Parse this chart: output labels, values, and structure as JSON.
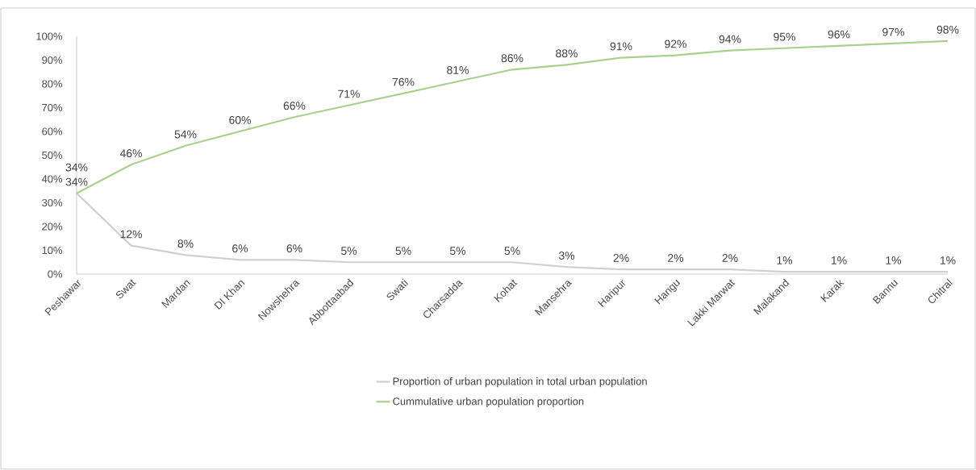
{
  "chart_data": {
    "type": "line",
    "categories": [
      "Peshawar",
      "Swat",
      "Mardan",
      "DI Khan",
      "Nowshehra",
      "Abbottaabad",
      "Swati",
      "Charsadda",
      "Kohat",
      "Mansehra",
      "Haripur",
      "Hangu",
      "Lakki Marwat",
      "Malakand",
      "Karak",
      "Bannu",
      "Chitral"
    ],
    "series": [
      {
        "name": "Proportion of urban population in total urban population",
        "color": "#d0d0d0",
        "values": [
          34,
          12,
          8,
          6,
          6,
          5,
          5,
          5,
          5,
          3,
          2,
          2,
          2,
          1,
          1,
          1,
          1
        ],
        "value_labels": [
          "34%",
          "12%",
          "8%",
          "6%",
          "6%",
          "5%",
          "5%",
          "5%",
          "5%",
          "3%",
          "2%",
          "2%",
          "2%",
          "1%",
          "1%",
          "1%",
          "1%"
        ]
      },
      {
        "name": "Cummulative urban population proportion",
        "color": "#a9d18e",
        "values": [
          34,
          46,
          54,
          60,
          66,
          71,
          76,
          81,
          86,
          88,
          91,
          92,
          94,
          95,
          96,
          97,
          98
        ],
        "value_labels": [
          "34%",
          "46%",
          "54%",
          "60%",
          "66%",
          "71%",
          "76%",
          "81%",
          "86%",
          "88%",
          "91%",
          "92%",
          "94%",
          "95%",
          "96%",
          "97%",
          "98%"
        ]
      }
    ],
    "ylim": [
      0,
      100
    ],
    "yticks": [
      {
        "value": 0,
        "label": "0%"
      },
      {
        "value": 10,
        "label": "10%"
      },
      {
        "value": 20,
        "label": "20%"
      },
      {
        "value": 30,
        "label": "30%"
      },
      {
        "value": 40,
        "label": "40%"
      },
      {
        "value": 50,
        "label": "50%"
      },
      {
        "value": 60,
        "label": "60%"
      },
      {
        "value": 70,
        "label": "70%"
      },
      {
        "value": 80,
        "label": "80%"
      },
      {
        "value": 90,
        "label": "90%"
      },
      {
        "value": 100,
        "label": "100%"
      }
    ],
    "legend": "bottom",
    "marker": "none"
  }
}
